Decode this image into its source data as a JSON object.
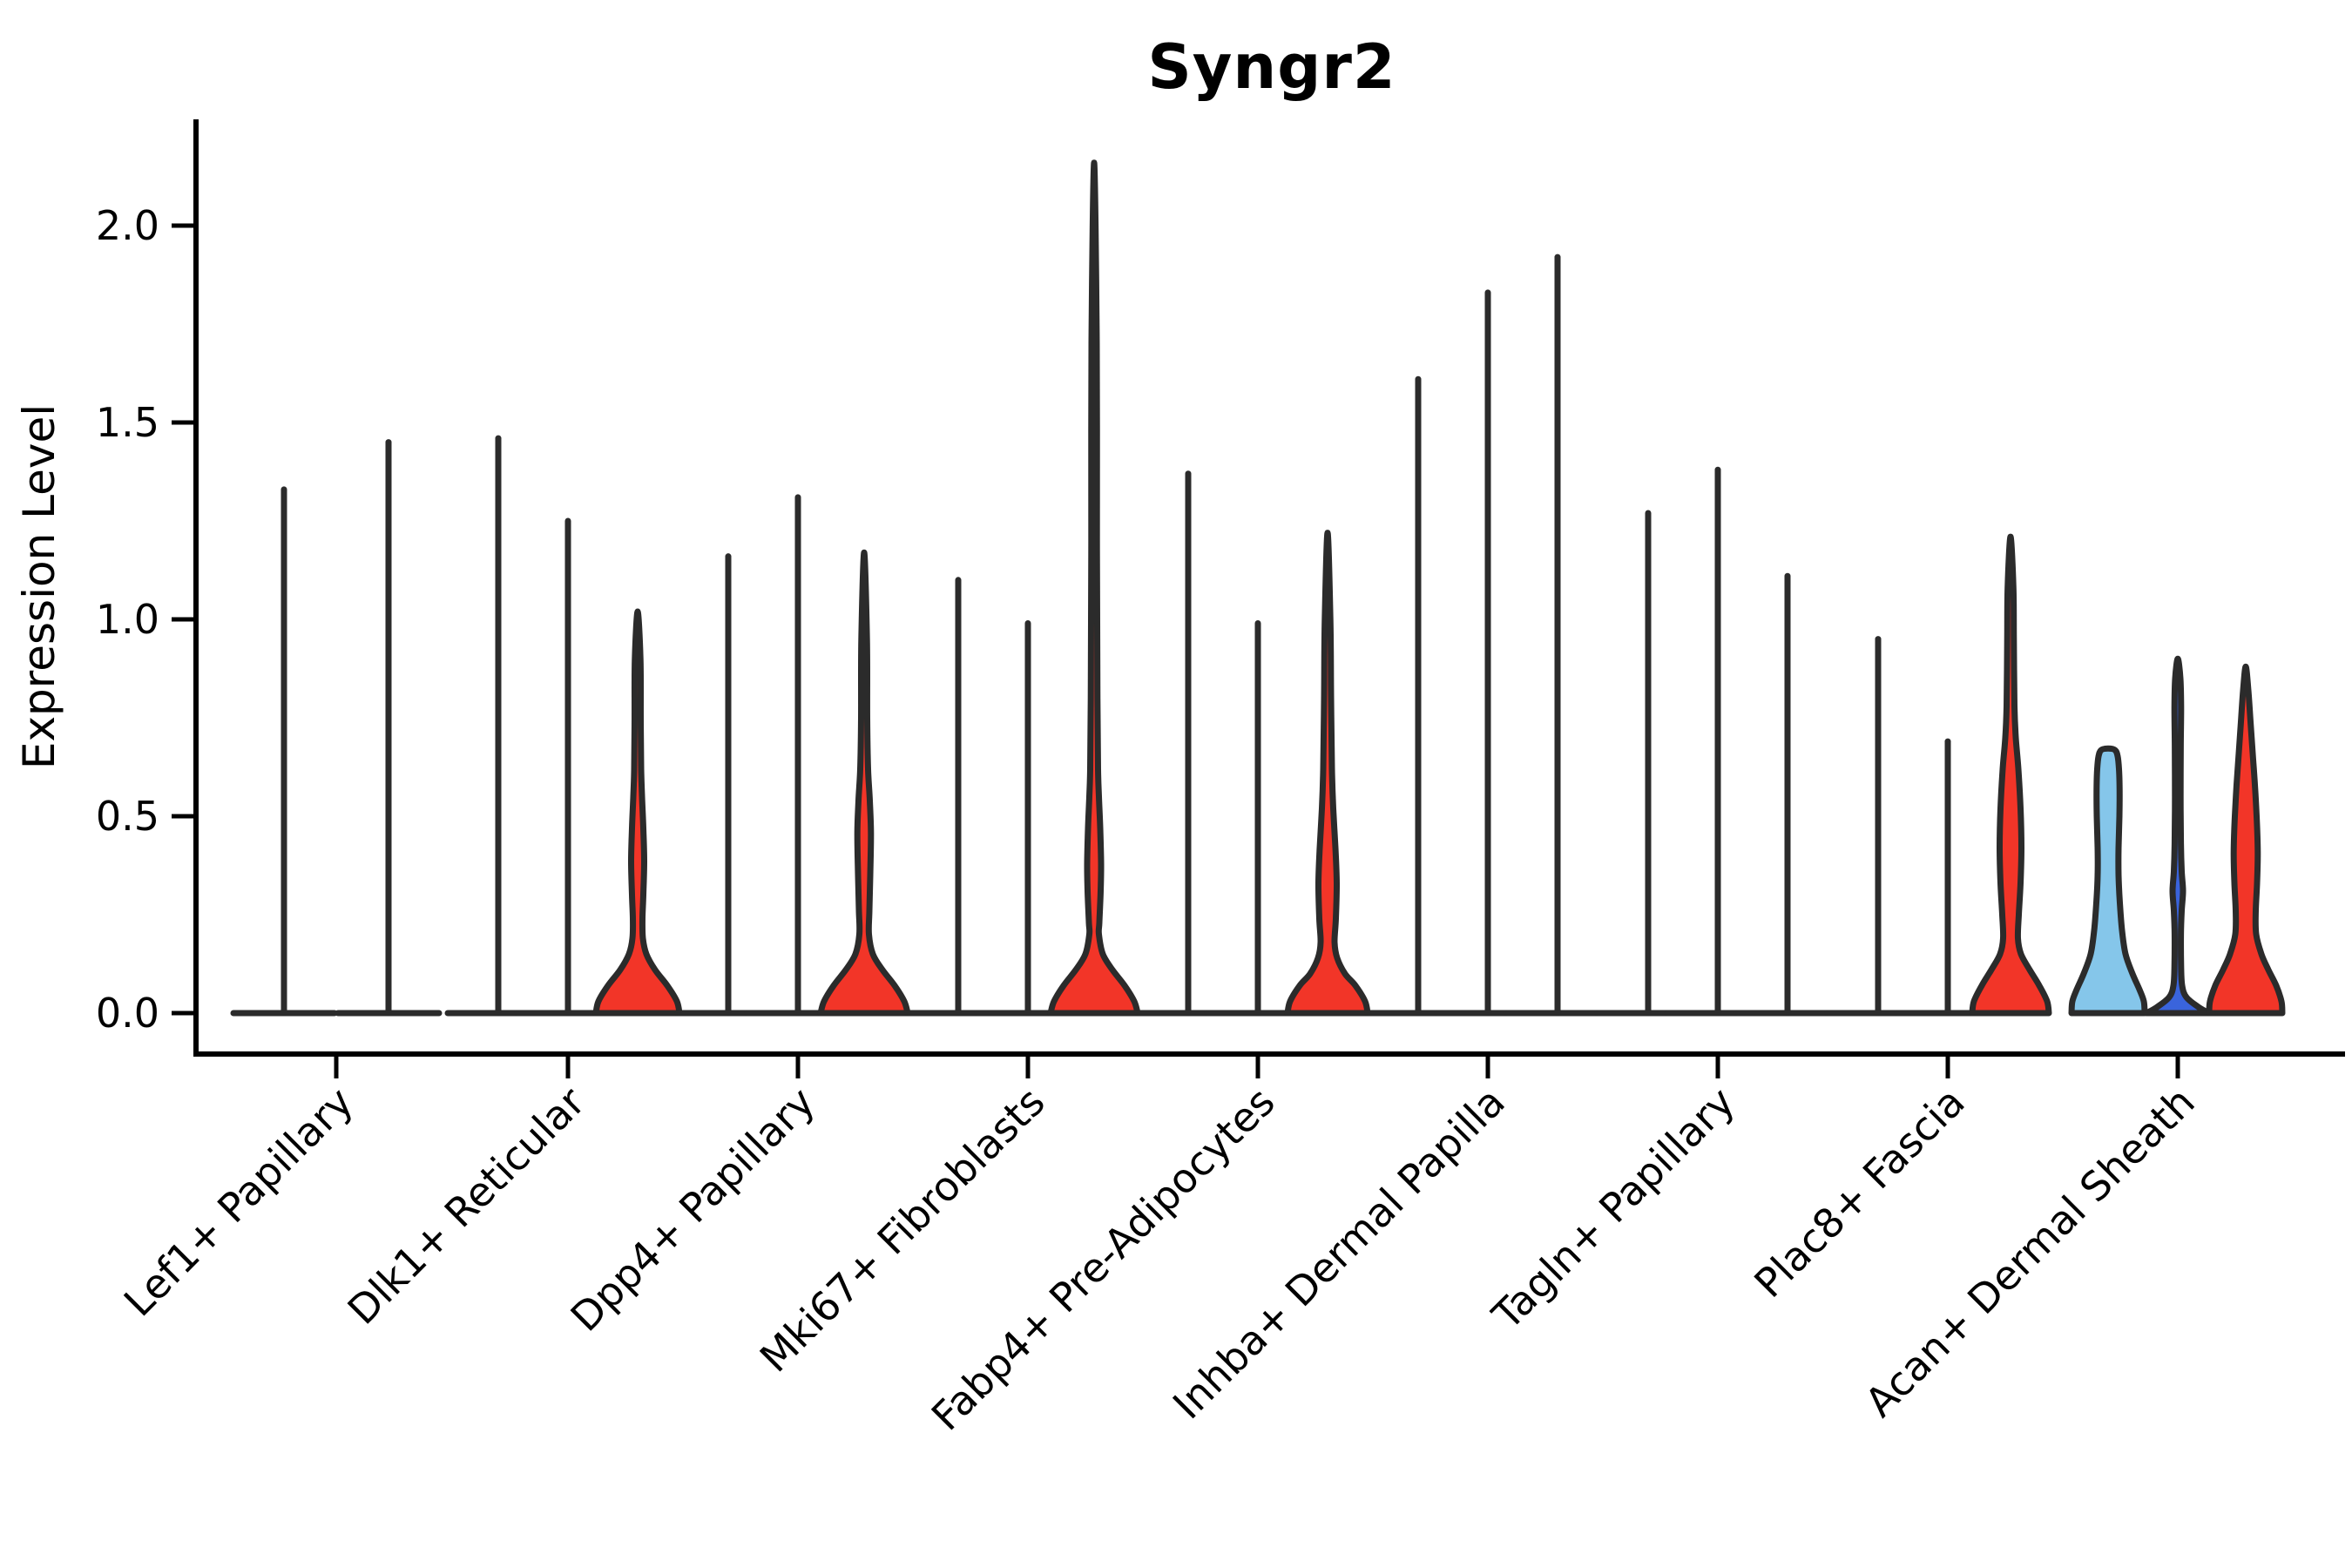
{
  "title": "Syngr2",
  "colors": {
    "red": "#F23528",
    "lightblue": "#85C6EA",
    "darkblue": "#3A64DC",
    "violin_outline": "#2b2b2b",
    "axis": "#000000",
    "background": "#ffffff"
  },
  "chart_data": {
    "type": "violin",
    "title": "Syngr2",
    "xlabel": "",
    "ylabel": "Expression Level",
    "ylim": [
      0,
      2.27
    ],
    "yticks": [
      {
        "value": 0.0,
        "label": "0.0"
      },
      {
        "value": 0.5,
        "label": "0.5"
      },
      {
        "value": 1.0,
        "label": "1.0"
      },
      {
        "value": 1.5,
        "label": "1.5"
      },
      {
        "value": 2.0,
        "label": "2.0"
      }
    ],
    "grid": false,
    "legend": "none",
    "categories": [
      "Lef1+ Papillary",
      "Dlk1+ Reticular",
      "Dpp4+ Papillary",
      "Mki67+ Fibroblasts",
      "Fabp4+ Pre-Adipocytes",
      "Inhba+ Dermal Papilla",
      "Tagln+ Papillary",
      "Plac8+ Fascia",
      "Acan+ Dermal Sheath"
    ],
    "groups": [
      {
        "label": "Lef1+ Papillary",
        "violins": [
          {
            "type": "spike",
            "dx": -60,
            "max": 1.33
          },
          {
            "type": "spike",
            "dx": 60,
            "max": 1.45
          }
        ]
      },
      {
        "label": "Dlk1+ Reticular",
        "violins": [
          {
            "type": "spike",
            "dx": -80,
            "max": 1.46
          },
          {
            "type": "spike",
            "dx": 0,
            "max": 1.25
          },
          {
            "type": "violin",
            "dx": 80,
            "fill": "red",
            "max": 1.02,
            "profile": [
              [
                0,
                48
              ],
              [
                0.03,
                45
              ],
              [
                0.07,
                34
              ],
              [
                0.11,
                20
              ],
              [
                0.15,
                10
              ],
              [
                0.19,
                6
              ],
              [
                0.24,
                5.5
              ],
              [
                0.3,
                6.5
              ],
              [
                0.385,
                7.5
              ],
              [
                0.47,
                6.5
              ],
              [
                0.55,
                5
              ],
              [
                0.62,
                4
              ],
              [
                0.75,
                3.5
              ],
              [
                0.9,
                3.2
              ],
              [
                1.02,
                0
              ]
            ]
          }
        ]
      },
      {
        "label": "Dpp4+ Papillary",
        "violins": [
          {
            "type": "spike",
            "dx": -80,
            "max": 1.16
          },
          {
            "type": "spike",
            "dx": 0,
            "max": 1.31
          },
          {
            "type": "violin",
            "dx": 76,
            "fill": "red",
            "max": 1.17,
            "profile": [
              [
                0,
                50
              ],
              [
                0.03,
                46
              ],
              [
                0.07,
                35
              ],
              [
                0.11,
                21
              ],
              [
                0.15,
                10
              ],
              [
                0.2,
                5.5
              ],
              [
                0.26,
                6
              ],
              [
                0.35,
                7
              ],
              [
                0.458,
                7.8
              ],
              [
                0.54,
                6.5
              ],
              [
                0.62,
                4.5
              ],
              [
                0.75,
                3.5
              ],
              [
                0.95,
                3.2
              ],
              [
                1.17,
                0
              ]
            ]
          }
        ]
      },
      {
        "label": "Mki67+ Fibroblasts",
        "violins": [
          {
            "type": "spike",
            "dx": -80,
            "max": 1.1
          },
          {
            "type": "spike",
            "dx": 0,
            "max": 0.99
          },
          {
            "type": "violin",
            "dx": 76,
            "fill": "red",
            "max": 2.16,
            "profile": [
              [
                0,
                50
              ],
              [
                0.03,
                46
              ],
              [
                0.07,
                35
              ],
              [
                0.11,
                21
              ],
              [
                0.15,
                10
              ],
              [
                0.2,
                5.5
              ],
              [
                0.23,
                6
              ],
              [
                0.31,
                7.5
              ],
              [
                0.38,
                8
              ],
              [
                0.47,
                7
              ],
              [
                0.55,
                5.5
              ],
              [
                0.62,
                4.5
              ],
              [
                0.8,
                3.8
              ],
              [
                1.2,
                3.2
              ],
              [
                1.7,
                3
              ],
              [
                2.16,
                0
              ]
            ]
          }
        ]
      },
      {
        "label": "Fabp4+ Pre-Adipocytes",
        "violins": [
          {
            "type": "spike",
            "dx": -80,
            "max": 1.37
          },
          {
            "type": "spike",
            "dx": 0,
            "max": 0.99
          },
          {
            "type": "violin",
            "dx": 80,
            "fill": "red",
            "max": 1.22,
            "profile": [
              [
                0,
                46
              ],
              [
                0.03,
                43
              ],
              [
                0.07,
                32
              ],
              [
                0.1,
                20
              ],
              [
                0.14,
                11
              ],
              [
                0.18,
                8
              ],
              [
                0.24,
                9.5
              ],
              [
                0.33,
                10.5
              ],
              [
                0.42,
                9
              ],
              [
                0.52,
                6.5
              ],
              [
                0.62,
                5
              ],
              [
                0.8,
                4
              ],
              [
                1.0,
                3.2
              ],
              [
                1.22,
                0
              ]
            ]
          }
        ]
      },
      {
        "label": "Inhba+ Dermal Papilla",
        "violins": [
          {
            "type": "spike",
            "dx": -80,
            "max": 1.61
          },
          {
            "type": "spike",
            "dx": 0,
            "max": 1.83
          },
          {
            "type": "spike",
            "dx": 80,
            "max": 1.92
          }
        ]
      },
      {
        "label": "Tagln+ Papillary",
        "violins": [
          {
            "type": "spike",
            "dx": -80,
            "max": 1.27
          },
          {
            "type": "spike",
            "dx": 0,
            "max": 1.38
          },
          {
            "type": "spike",
            "dx": 80,
            "max": 1.11
          }
        ]
      },
      {
        "label": "Plac8+ Fascia",
        "violins": [
          {
            "type": "spike",
            "dx": -80,
            "max": 0.95
          },
          {
            "type": "spike",
            "dx": 0,
            "max": 0.69
          },
          {
            "type": "violin",
            "dx": 72,
            "fill": "red",
            "max": 1.21,
            "profile": [
              [
                0,
                44
              ],
              [
                0.03,
                42
              ],
              [
                0.07,
                33
              ],
              [
                0.11,
                22
              ],
              [
                0.15,
                12
              ],
              [
                0.19,
                8.5
              ],
              [
                0.25,
                9.5
              ],
              [
                0.33,
                11.5
              ],
              [
                0.42,
                12.5
              ],
              [
                0.52,
                11.5
              ],
              [
                0.62,
                9
              ],
              [
                0.7,
                6
              ],
              [
                0.78,
                4.5
              ],
              [
                0.95,
                3.8
              ],
              [
                1.08,
                3.3
              ],
              [
                1.21,
                0
              ]
            ]
          }
        ]
      },
      {
        "label": "Acan+ Dermal Sheath",
        "violins": [
          {
            "type": "violin",
            "dx": -80,
            "fill": "lightblue",
            "max": 0.672,
            "profile": [
              [
                0,
                42
              ],
              [
                0.03,
                41
              ],
              [
                0.06,
                36
              ],
              [
                0.1,
                28
              ],
              [
                0.15,
                20
              ],
              [
                0.21,
                16
              ],
              [
                0.28,
                13.5
              ],
              [
                0.35,
                12
              ],
              [
                0.42,
                12
              ],
              [
                0.5,
                13
              ],
              [
                0.57,
                13.2
              ],
              [
                0.62,
                12.5
              ],
              [
                0.652,
                11
              ],
              [
                0.668,
                8
              ],
              [
                0.672,
                0
              ]
            ]
          },
          {
            "type": "violin",
            "dx": 0,
            "fill": "darkblue",
            "max": 0.9,
            "profile": [
              [
                0,
                36
              ],
              [
                0.015,
                24
              ],
              [
                0.04,
                10
              ],
              [
                0.07,
                5
              ],
              [
                0.12,
                3.8
              ],
              [
                0.2,
                3.6
              ],
              [
                0.26,
                4.5
              ],
              [
                0.31,
                6
              ],
              [
                0.36,
                4.5
              ],
              [
                0.43,
                3.6
              ],
              [
                0.55,
                3.2
              ],
              [
                0.68,
                3.4
              ],
              [
                0.78,
                3.8
              ],
              [
                0.85,
                3
              ],
              [
                0.9,
                0
              ]
            ]
          },
          {
            "type": "violin",
            "dx": 78,
            "fill": "red",
            "max": 0.88,
            "profile": [
              [
                0,
                42
              ],
              [
                0.03,
                41
              ],
              [
                0.07,
                35
              ],
              [
                0.11,
                26
              ],
              [
                0.15,
                18
              ],
              [
                0.2,
                12
              ],
              [
                0.26,
                11.5
              ],
              [
                0.33,
                13
              ],
              [
                0.41,
                13.8
              ],
              [
                0.5,
                12.5
              ],
              [
                0.58,
                10.5
              ],
              [
                0.66,
                8
              ],
              [
                0.74,
                5.5
              ],
              [
                0.82,
                3
              ],
              [
                0.88,
                0
              ]
            ]
          }
        ]
      }
    ]
  }
}
